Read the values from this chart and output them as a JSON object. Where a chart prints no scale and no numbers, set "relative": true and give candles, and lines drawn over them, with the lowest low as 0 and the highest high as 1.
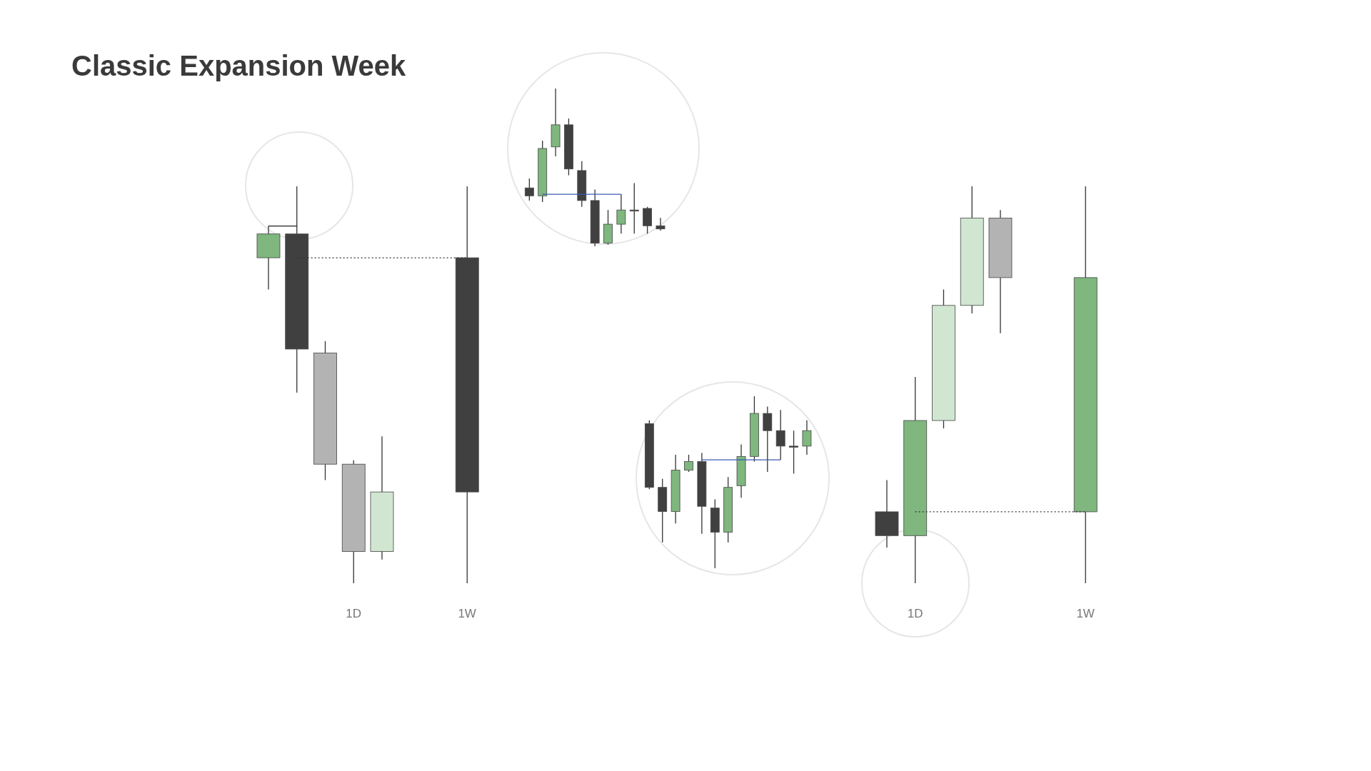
{
  "chart_data": [
    {
      "type": "candlestick",
      "title": "Classic Expansion Week",
      "relative": true,
      "categories": [
        null,
        null,
        null,
        "1D",
        null,
        null,
        null,
        "1W"
      ],
      "ohlc": [
        [
          0.82,
          0.9,
          0.74,
          0.88
        ],
        [
          0.88,
          1,
          0.48,
          0.59
        ],
        [
          0.58,
          0.61,
          0.26,
          0.3
        ],
        [
          0.3,
          0.31,
          0,
          0.08
        ],
        [
          0.08,
          0.37,
          0.06,
          0.23
        ],
        null,
        null,
        [
          0.82,
          1,
          0,
          0.23
        ]
      ],
      "colors": [
        "#7fb77e",
        "#404040",
        "#b3b3b3",
        "#b3b3b3",
        "#d0e6d0",
        null,
        null,
        "#404040"
      ],
      "ref_lines": [
        {
          "axis": "y",
          "value": 0.82,
          "color": "#333333",
          "line_style": "dotted"
        },
        {
          "axis": "y",
          "value": 0.9,
          "color": "#222222",
          "line_style": "solid"
        }
      ]
    },
    {
      "type": "candlestick",
      "relative": true,
      "categories": [
        null,
        null,
        null,
        null,
        null,
        null,
        null,
        null,
        null,
        null,
        null
      ],
      "ohlc": [
        [
          0.37,
          0.43,
          0.29,
          0.32
        ],
        [
          0.32,
          0.67,
          0.28,
          0.62
        ],
        [
          0.63,
          1,
          0.57,
          0.77
        ],
        [
          0.77,
          0.81,
          0.45,
          0.49
        ],
        [
          0.48,
          0.54,
          0.25,
          0.29
        ],
        [
          0.29,
          0.36,
          0,
          0.02
        ],
        [
          0.02,
          0.23,
          0.01,
          0.14
        ],
        [
          0.14,
          0.33,
          0.08,
          0.23
        ],
        [
          0.23,
          0.4,
          0.08,
          0.23
        ],
        [
          0.24,
          0.25,
          0.08,
          0.13
        ],
        [
          0.13,
          0.18,
          0.1,
          0.11
        ]
      ],
      "colors": [
        "#404040",
        "#7fb77e",
        "#7fb77e",
        "#404040",
        "#404040",
        "#404040",
        "#7fb77e",
        "#7fb77e",
        "#404040",
        "#404040",
        "#404040"
      ],
      "ref_lines": [
        {
          "axis": "y",
          "value": 0.33,
          "color": "#3b5bb5",
          "line_style": "solid"
        }
      ]
    },
    {
      "type": "candlestick",
      "relative": true,
      "categories": [
        null,
        "1D",
        null,
        null,
        null,
        null,
        null,
        "1W"
      ],
      "ohlc": [
        [
          0.18,
          0.26,
          0.09,
          0.12
        ],
        [
          0.12,
          0.52,
          0,
          0.41
        ],
        [
          0.41,
          0.74,
          0.39,
          0.7
        ],
        [
          0.7,
          1,
          0.68,
          0.92
        ],
        [
          0.92,
          0.94,
          0.63,
          0.77
        ],
        null,
        null,
        [
          0.18,
          1,
          0,
          0.77
        ]
      ],
      "colors": [
        "#404040",
        "#7fb77e",
        "#d0e6d0",
        "#d0e6d0",
        "#b3b3b3",
        null,
        null,
        "#7fb77e"
      ],
      "ref_lines": [
        {
          "axis": "y",
          "value": 0.18,
          "color": "#333333",
          "line_style": "dotted"
        }
      ]
    },
    {
      "type": "candlestick",
      "relative": true,
      "categories": [
        null,
        null,
        null,
        null,
        null,
        null,
        null,
        null,
        null,
        null,
        null,
        null,
        null
      ],
      "ohlc": [
        [
          0.84,
          0.86,
          0.46,
          0.47
        ],
        [
          0.47,
          0.52,
          0.15,
          0.33
        ],
        [
          0.33,
          0.66,
          0.26,
          0.57
        ],
        [
          0.57,
          0.66,
          0.56,
          0.62
        ],
        [
          0.62,
          0.67,
          0.2,
          0.36
        ],
        [
          0.35,
          0.4,
          0,
          0.21
        ],
        [
          0.21,
          0.53,
          0.15,
          0.47
        ],
        [
          0.48,
          0.72,
          0.41,
          0.65
        ],
        [
          0.65,
          1,
          0.62,
          0.9
        ],
        [
          0.9,
          0.94,
          0.56,
          0.8
        ],
        [
          0.8,
          0.92,
          0.63,
          0.71
        ],
        [
          0.71,
          0.8,
          0.55,
          0.71
        ],
        [
          0.71,
          0.86,
          0.66,
          0.8
        ]
      ],
      "colors": [
        "#404040",
        "#404040",
        "#7fb77e",
        "#7fb77e",
        "#404040",
        "#404040",
        "#7fb77e",
        "#7fb77e",
        "#7fb77e",
        "#404040",
        "#404040",
        "#404040",
        "#7fb77e"
      ],
      "ref_lines": [
        {
          "axis": "y",
          "value": 0.63,
          "color": "#3b5bb5",
          "line_style": "solid"
        }
      ]
    }
  ]
}
